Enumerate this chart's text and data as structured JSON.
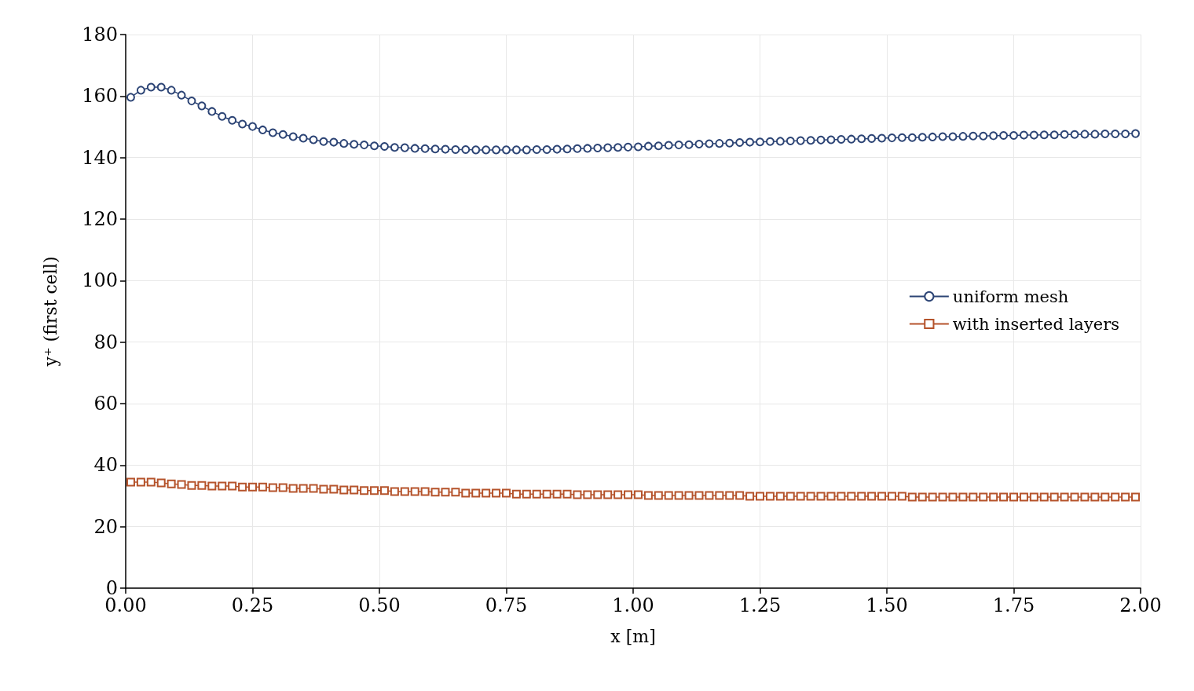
{
  "chart_data": {
    "type": "line",
    "xlabel": "x [m]",
    "ylabel": "y⁺ (first cell)",
    "x": [
      0.01,
      0.03,
      0.05,
      0.07,
      0.09,
      0.11,
      0.13,
      0.15,
      0.17,
      0.19,
      0.21,
      0.23,
      0.25,
      0.27,
      0.29,
      0.31,
      0.33,
      0.35,
      0.37,
      0.39,
      0.41,
      0.43,
      0.45,
      0.47,
      0.49,
      0.51,
      0.53,
      0.55,
      0.57,
      0.59,
      0.61,
      0.63,
      0.65,
      0.67,
      0.69,
      0.71,
      0.73,
      0.75,
      0.77,
      0.79,
      0.81,
      0.83,
      0.85,
      0.87,
      0.89,
      0.91,
      0.93,
      0.95,
      0.97,
      0.99,
      1.01,
      1.03,
      1.05,
      1.07,
      1.09,
      1.11,
      1.13,
      1.15,
      1.17,
      1.19,
      1.21,
      1.23,
      1.25,
      1.27,
      1.29,
      1.31,
      1.33,
      1.35,
      1.37,
      1.39,
      1.41,
      1.43,
      1.45,
      1.47,
      1.49,
      1.51,
      1.53,
      1.55,
      1.57,
      1.59,
      1.61,
      1.63,
      1.65,
      1.67,
      1.69,
      1.71,
      1.73,
      1.75,
      1.77,
      1.79,
      1.81,
      1.83,
      1.85,
      1.87,
      1.89,
      1.91,
      1.93,
      1.95,
      1.97,
      1.99
    ],
    "series": [
      {
        "name": "uniform mesh",
        "color": "#2c4475",
        "marker": "circle",
        "values": [
          159.6,
          161.9,
          162.9,
          162.9,
          161.9,
          160.3,
          158.4,
          156.8,
          155.0,
          153.4,
          152.1,
          150.9,
          150.1,
          149.0,
          148.1,
          147.5,
          146.8,
          146.3,
          145.8,
          145.2,
          145.0,
          144.6,
          144.3,
          144.1,
          143.8,
          143.6,
          143.3,
          143.2,
          143.0,
          142.9,
          142.8,
          142.7,
          142.6,
          142.6,
          142.5,
          142.5,
          142.5,
          142.5,
          142.5,
          142.5,
          142.6,
          142.6,
          142.7,
          142.8,
          142.9,
          143.0,
          143.1,
          143.2,
          143.3,
          143.4,
          143.5,
          143.7,
          143.8,
          144.0,
          144.1,
          144.2,
          144.4,
          144.5,
          144.6,
          144.7,
          144.9,
          145.0,
          145.1,
          145.2,
          145.3,
          145.4,
          145.5,
          145.6,
          145.7,
          145.8,
          145.9,
          146.0,
          146.1,
          146.2,
          146.3,
          146.4,
          146.5,
          146.5,
          146.6,
          146.7,
          146.8,
          146.8,
          146.9,
          147.0,
          147.0,
          147.1,
          147.2,
          147.2,
          147.3,
          147.3,
          147.4,
          147.4,
          147.5,
          147.5,
          147.6,
          147.6,
          147.7,
          147.7,
          147.7,
          147.8
        ]
      },
      {
        "name": "with inserted layers",
        "color": "#b5532b",
        "marker": "square",
        "values": [
          34.5,
          34.5,
          34.5,
          34.2,
          33.9,
          33.7,
          33.4,
          33.4,
          33.2,
          33.2,
          33.2,
          32.9,
          32.9,
          32.9,
          32.7,
          32.7,
          32.4,
          32.4,
          32.4,
          32.2,
          32.2,
          31.9,
          31.9,
          31.7,
          31.7,
          31.7,
          31.4,
          31.4,
          31.4,
          31.4,
          31.2,
          31.2,
          31.2,
          30.9,
          30.9,
          30.9,
          30.9,
          30.9,
          30.6,
          30.6,
          30.6,
          30.6,
          30.6,
          30.6,
          30.4,
          30.4,
          30.4,
          30.4,
          30.4,
          30.4,
          30.4,
          30.1,
          30.1,
          30.1,
          30.1,
          30.1,
          30.1,
          30.1,
          30.1,
          30.1,
          30.1,
          29.9,
          29.9,
          29.9,
          29.9,
          29.9,
          29.9,
          29.9,
          29.9,
          29.9,
          29.9,
          29.9,
          29.9,
          29.9,
          29.9,
          29.9,
          29.9,
          29.6,
          29.6,
          29.6,
          29.6,
          29.6,
          29.6,
          29.6,
          29.6,
          29.6,
          29.6,
          29.6,
          29.6,
          29.6,
          29.6,
          29.6,
          29.6,
          29.6,
          29.6,
          29.6,
          29.6,
          29.6,
          29.6,
          29.6
        ]
      }
    ],
    "xlim": [
      0,
      2
    ],
    "xticks": [
      {
        "value": 0,
        "label": "0.00"
      },
      {
        "value": 0.25,
        "label": "0.25"
      },
      {
        "value": 0.5,
        "label": "0.50"
      },
      {
        "value": 0.75,
        "label": "0.75"
      },
      {
        "value": 1,
        "label": "1.00"
      },
      {
        "value": 1.25,
        "label": "1.25"
      },
      {
        "value": 1.5,
        "label": "1.50"
      },
      {
        "value": 1.75,
        "label": "1.75"
      },
      {
        "value": 2,
        "label": "2.00"
      }
    ],
    "ylim": [
      0,
      180
    ],
    "yticks": [
      0,
      20,
      40,
      60,
      80,
      100,
      120,
      140,
      160,
      180
    ],
    "grid": true,
    "legend": "right",
    "line_style": "solid"
  }
}
